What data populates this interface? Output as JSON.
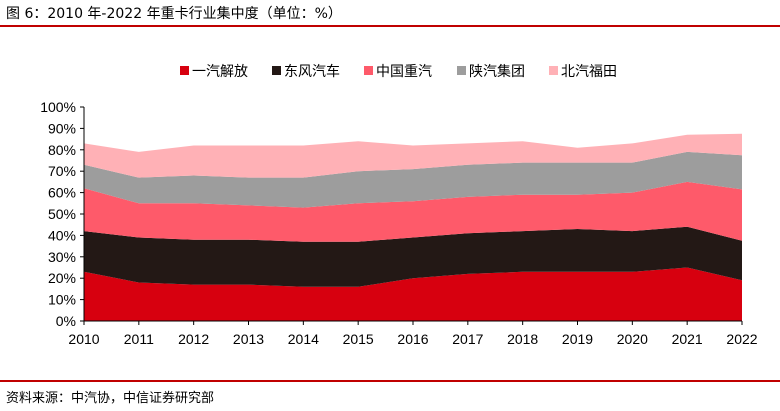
{
  "header": {
    "title": "图 6：2010 年-2022 年重卡行业集中度（单位：%）"
  },
  "footer": {
    "source": "资料来源：中汽协，中信证券研究部"
  },
  "chart_data": {
    "type": "area",
    "stacked": true,
    "title": "",
    "xlabel": "",
    "ylabel": "",
    "x": [
      "2010",
      "2011",
      "2012",
      "2013",
      "2014",
      "2015",
      "2016",
      "2017",
      "2018",
      "2019",
      "2020",
      "2021",
      "2022"
    ],
    "y_ticks": [
      "0%",
      "10%",
      "20%",
      "30%",
      "40%",
      "50%",
      "60%",
      "70%",
      "80%",
      "90%",
      "100%"
    ],
    "ylim": [
      0,
      100
    ],
    "legend_position": "top",
    "grid": false,
    "series": [
      {
        "name": "一汽解放",
        "color": "#d7000f",
        "values": [
          23,
          18,
          17,
          17,
          16,
          16,
          20,
          22,
          23,
          23,
          23,
          25,
          19
        ]
      },
      {
        "name": "东风汽车",
        "color": "#231815",
        "values": [
          19,
          21,
          21,
          21,
          21,
          21,
          19,
          19,
          19,
          20,
          19,
          19,
          18.5
        ]
      },
      {
        "name": "中国重汽",
        "color": "#fe5a6a",
        "values": [
          20,
          16,
          17,
          16,
          16,
          18,
          17,
          17,
          17,
          16,
          18,
          21,
          24
        ]
      },
      {
        "name": "陕汽集团",
        "color": "#9d9d9d",
        "values": [
          11,
          12,
          13,
          13,
          14,
          15,
          15,
          15,
          15,
          15,
          14,
          14,
          16
        ]
      },
      {
        "name": "北汽福田",
        "color": "#ffb1b6",
        "values": [
          10,
          12,
          14,
          15,
          15,
          14,
          11,
          10,
          10,
          7,
          9,
          8,
          10
        ]
      }
    ]
  }
}
